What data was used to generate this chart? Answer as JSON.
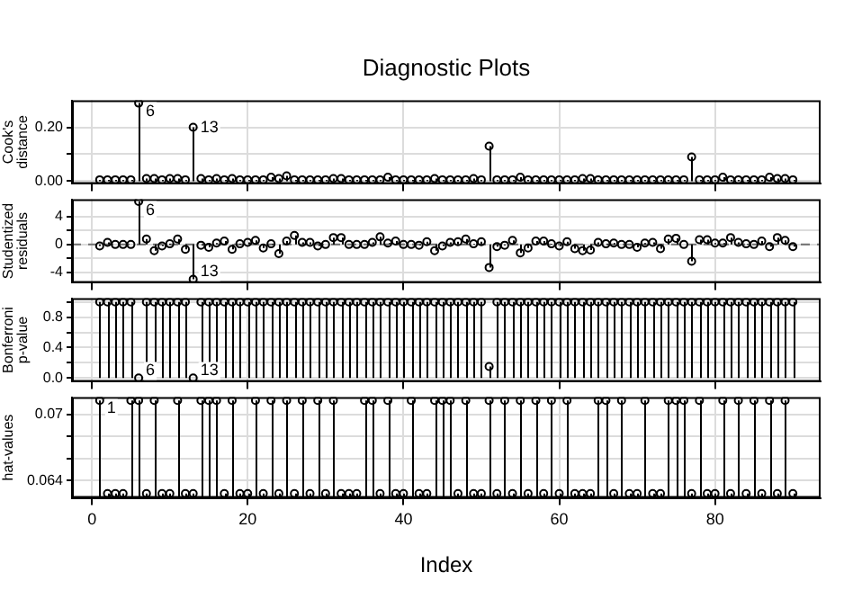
{
  "chart_data": [
    {
      "type": "lollipop",
      "title": "Diagnostic Plots",
      "ylabel": "Cook's distance",
      "grid": true,
      "marker": "circle",
      "tick_labels": "y",
      "xlim": [
        -2.56,
        93.56
      ],
      "xticks": [
        0,
        20,
        40,
        60,
        80
      ],
      "ylim": [
        -0.01,
        0.3
      ],
      "yticks": [
        {
          "value": 0,
          "label": "0.00"
        },
        {
          "value": 0.1,
          "label": null
        },
        {
          "value": 0.2,
          "label": "0.20"
        }
      ],
      "x": [
        1,
        2,
        3,
        4,
        5,
        6,
        7,
        8,
        9,
        10,
        11,
        12,
        13,
        14,
        15,
        16,
        17,
        18,
        19,
        20,
        21,
        22,
        23,
        24,
        25,
        26,
        27,
        28,
        29,
        30,
        31,
        32,
        33,
        34,
        35,
        36,
        37,
        38,
        39,
        40,
        41,
        42,
        43,
        44,
        45,
        46,
        47,
        48,
        49,
        50,
        51,
        52,
        53,
        54,
        55,
        56,
        57,
        58,
        59,
        60,
        61,
        62,
        63,
        64,
        65,
        66,
        67,
        68,
        69,
        70,
        71,
        72,
        73,
        74,
        75,
        76,
        77,
        78,
        79,
        80,
        81,
        82,
        83,
        84,
        85,
        86,
        87,
        88,
        89,
        90
      ],
      "series": [
        {
          "color": "#000000",
          "values": [
            0.005,
            0.005,
            0.005,
            0.005,
            0.005,
            0.29,
            0.01,
            0.01,
            0.005,
            0.01,
            0.01,
            0.005,
            0.2,
            0.01,
            0.005,
            0.01,
            0.005,
            0.01,
            0.005,
            0.005,
            0.005,
            0.005,
            0.015,
            0.01,
            0.02,
            0.005,
            0.005,
            0.005,
            0.005,
            0.005,
            0.01,
            0.01,
            0.005,
            0.005,
            0.005,
            0.005,
            0.005,
            0.015,
            0.005,
            0.005,
            0.005,
            0.005,
            0.005,
            0.01,
            0.005,
            0.005,
            0.005,
            0.005,
            0.01,
            0.005,
            0.13,
            0.005,
            0.005,
            0.005,
            0.015,
            0.005,
            0.005,
            0.005,
            0.005,
            0.005,
            0.005,
            0.005,
            0.01,
            0.01,
            0.005,
            0.005,
            0.005,
            0.005,
            0.005,
            0.005,
            0.005,
            0.005,
            0.005,
            0.005,
            0.005,
            0.005,
            0.09,
            0.005,
            0.005,
            0.005,
            0.015,
            0.005,
            0.005,
            0.005,
            0.005,
            0.005,
            0.015,
            0.01,
            0.01,
            0.005
          ]
        }
      ],
      "annotations": [
        {
          "text": "6",
          "x": 6,
          "y": 0.29
        },
        {
          "text": "13",
          "x": 13,
          "y": 0.2
        }
      ]
    },
    {
      "type": "lollipop",
      "ylabel": "Studentized residuals",
      "grid": true,
      "marker": "circle",
      "tick_labels": "y",
      "xlim": [
        -2.56,
        93.56
      ],
      "xticks": [
        0,
        20,
        40,
        60,
        80
      ],
      "ylim": [
        -5.5,
        6.5
      ],
      "yticks": [
        -4,
        {
          "value": -2,
          "label": null
        },
        0,
        {
          "value": 2,
          "label": null
        },
        4
      ],
      "ref_lines": [
        {
          "axis": "y",
          "value": 0,
          "color": "#707070",
          "line_style": "dashed"
        }
      ],
      "x": [
        1,
        2,
        3,
        4,
        5,
        6,
        7,
        8,
        9,
        10,
        11,
        12,
        13,
        14,
        15,
        16,
        17,
        18,
        19,
        20,
        21,
        22,
        23,
        24,
        25,
        26,
        27,
        28,
        29,
        30,
        31,
        32,
        33,
        34,
        35,
        36,
        37,
        38,
        39,
        40,
        41,
        42,
        43,
        44,
        45,
        46,
        47,
        48,
        49,
        50,
        51,
        52,
        53,
        54,
        55,
        56,
        57,
        58,
        59,
        60,
        61,
        62,
        63,
        64,
        65,
        66,
        67,
        68,
        69,
        70,
        71,
        72,
        73,
        74,
        75,
        76,
        77,
        78,
        79,
        80,
        81,
        82,
        83,
        84,
        85,
        86,
        87,
        88,
        89,
        90
      ],
      "series": [
        {
          "color": "#000000",
          "values": [
            -0.2,
            0.3,
            0,
            0,
            0,
            6.2,
            0.8,
            -0.9,
            -0.2,
            0.1,
            0.8,
            -0.7,
            -5,
            -0.1,
            -0.4,
            0.2,
            0.5,
            -0.7,
            0.1,
            0.3,
            0.6,
            -0.5,
            0.1,
            -1.3,
            0.5,
            1.3,
            0.3,
            0.3,
            -0.2,
            0,
            1,
            1,
            0,
            0,
            0,
            0.3,
            1.1,
            0.2,
            0.5,
            0,
            0,
            -0.1,
            0.4,
            -0.9,
            -0.2,
            0.3,
            0.4,
            0.8,
            0.1,
            0.4,
            -3.3,
            -0.3,
            -0.1,
            0.6,
            -1.2,
            -0.5,
            0.5,
            0.5,
            0.1,
            -0.2,
            0.4,
            -0.6,
            -0.9,
            -0.8,
            0.3,
            0.1,
            0.2,
            0,
            0,
            -0.4,
            0.2,
            0.3,
            -0.6,
            0.8,
            0.9,
            0,
            -2.4,
            0.7,
            0.7,
            0.2,
            0.2,
            1,
            0.3,
            0.1,
            0,
            0.5,
            -0.3,
            1,
            0.6,
            -0.3
          ]
        }
      ],
      "annotations": [
        {
          "text": "6",
          "x": 6,
          "y": 6.2
        },
        {
          "text": "13",
          "x": 13,
          "y": -5
        }
      ]
    },
    {
      "type": "lollipop",
      "ylabel": "Bonferroni p-value",
      "grid": true,
      "marker": "circle",
      "tick_labels": "y",
      "xlim": [
        -2.56,
        93.56
      ],
      "xticks": [
        0,
        20,
        40,
        60,
        80
      ],
      "ylim": [
        -0.05,
        1.05
      ],
      "yticks": [
        {
          "value": 0,
          "label": "0.0"
        },
        {
          "value": 0.2,
          "label": null
        },
        {
          "value": 0.4,
          "label": "0.4"
        },
        {
          "value": 0.6,
          "label": null
        },
        {
          "value": 0.8,
          "label": "0.8"
        },
        {
          "value": 1,
          "label": null
        }
      ],
      "x": [
        1,
        2,
        3,
        4,
        5,
        6,
        7,
        8,
        9,
        10,
        11,
        12,
        13,
        14,
        15,
        16,
        17,
        18,
        19,
        20,
        21,
        22,
        23,
        24,
        25,
        26,
        27,
        28,
        29,
        30,
        31,
        32,
        33,
        34,
        35,
        36,
        37,
        38,
        39,
        40,
        41,
        42,
        43,
        44,
        45,
        46,
        47,
        48,
        49,
        50,
        51,
        52,
        53,
        54,
        55,
        56,
        57,
        58,
        59,
        60,
        61,
        62,
        63,
        64,
        65,
        66,
        67,
        68,
        69,
        70,
        71,
        72,
        73,
        74,
        75,
        76,
        77,
        78,
        79,
        80,
        81,
        82,
        83,
        84,
        85,
        86,
        87,
        88,
        89,
        90
      ],
      "series": [
        {
          "color": "#000000",
          "values": [
            1,
            1,
            1,
            1,
            1,
            0,
            1,
            1,
            1,
            1,
            1,
            1,
            0,
            1,
            1,
            1,
            1,
            1,
            1,
            1,
            1,
            1,
            1,
            1,
            1,
            1,
            1,
            1,
            1,
            1,
            1,
            1,
            1,
            1,
            1,
            1,
            1,
            1,
            1,
            1,
            1,
            1,
            1,
            1,
            1,
            1,
            1,
            1,
            1,
            1,
            0.15,
            1,
            1,
            1,
            1,
            1,
            1,
            1,
            1,
            1,
            1,
            1,
            1,
            1,
            1,
            1,
            1,
            1,
            1,
            1,
            1,
            1,
            1,
            1,
            1,
            1,
            1,
            1,
            1,
            1,
            1,
            1,
            1,
            1,
            1,
            1,
            1,
            1,
            1,
            1
          ]
        }
      ],
      "annotations": [
        {
          "text": "6",
          "x": 6,
          "y": 0
        },
        {
          "text": "13",
          "x": 13,
          "y": 0
        }
      ]
    },
    {
      "type": "lollipop",
      "ylabel": "hat-values",
      "xlabel": "Index",
      "grid": true,
      "marker": "circle",
      "xlim": [
        -2.56,
        93.56
      ],
      "xticks": [
        0,
        20,
        40,
        60,
        80
      ],
      "ylim": [
        0.0624,
        0.0716
      ],
      "yticks": [
        0.064,
        {
          "value": 0.066,
          "label": null
        },
        {
          "value": 0.068,
          "label": null
        },
        0.07
      ],
      "x": [
        1,
        2,
        3,
        4,
        5,
        6,
        7,
        8,
        9,
        10,
        11,
        12,
        13,
        14,
        15,
        16,
        17,
        18,
        19,
        20,
        21,
        22,
        23,
        24,
        25,
        26,
        27,
        28,
        29,
        30,
        31,
        32,
        33,
        34,
        35,
        36,
        37,
        38,
        39,
        40,
        41,
        42,
        43,
        44,
        45,
        46,
        47,
        48,
        49,
        50,
        51,
        52,
        53,
        54,
        55,
        56,
        57,
        58,
        59,
        60,
        61,
        62,
        63,
        64,
        65,
        66,
        67,
        68,
        69,
        70,
        71,
        72,
        73,
        74,
        75,
        76,
        77,
        78,
        79,
        80,
        81,
        82,
        83,
        84,
        85,
        86,
        87,
        88,
        89,
        90
      ],
      "series": [
        {
          "color": "#000000",
          "values": [
            0.0713,
            0.0628,
            0.0628,
            0.0628,
            0.0713,
            0.0713,
            0.0628,
            0.0713,
            0.0628,
            0.0628,
            0.0713,
            0.0628,
            0.0628,
            0.0713,
            0.0713,
            0.0713,
            0.0628,
            0.0713,
            0.0628,
            0.0628,
            0.0713,
            0.0628,
            0.0713,
            0.0628,
            0.0713,
            0.0628,
            0.0713,
            0.0628,
            0.0713,
            0.0628,
            0.0713,
            0.0628,
            0.0628,
            0.0628,
            0.0713,
            0.0713,
            0.0628,
            0.0713,
            0.0628,
            0.0628,
            0.0713,
            0.0628,
            0.0628,
            0.0713,
            0.0713,
            0.0713,
            0.0628,
            0.0713,
            0.0628,
            0.0628,
            0.0713,
            0.0628,
            0.0713,
            0.0628,
            0.0713,
            0.0628,
            0.0713,
            0.0628,
            0.0713,
            0.0628,
            0.0713,
            0.0628,
            0.0628,
            0.0628,
            0.0713,
            0.0713,
            0.0628,
            0.0713,
            0.0628,
            0.0628,
            0.0713,
            0.0628,
            0.0628,
            0.0713,
            0.0713,
            0.0713,
            0.0628,
            0.0713,
            0.0628,
            0.0628,
            0.0713,
            0.0628,
            0.0713,
            0.0628,
            0.0713,
            0.0628,
            0.0713,
            0.0628,
            0.0713,
            0.0628
          ]
        }
      ],
      "annotations": [
        {
          "text": "1",
          "x": 1,
          "y": 0.0713
        }
      ]
    }
  ]
}
